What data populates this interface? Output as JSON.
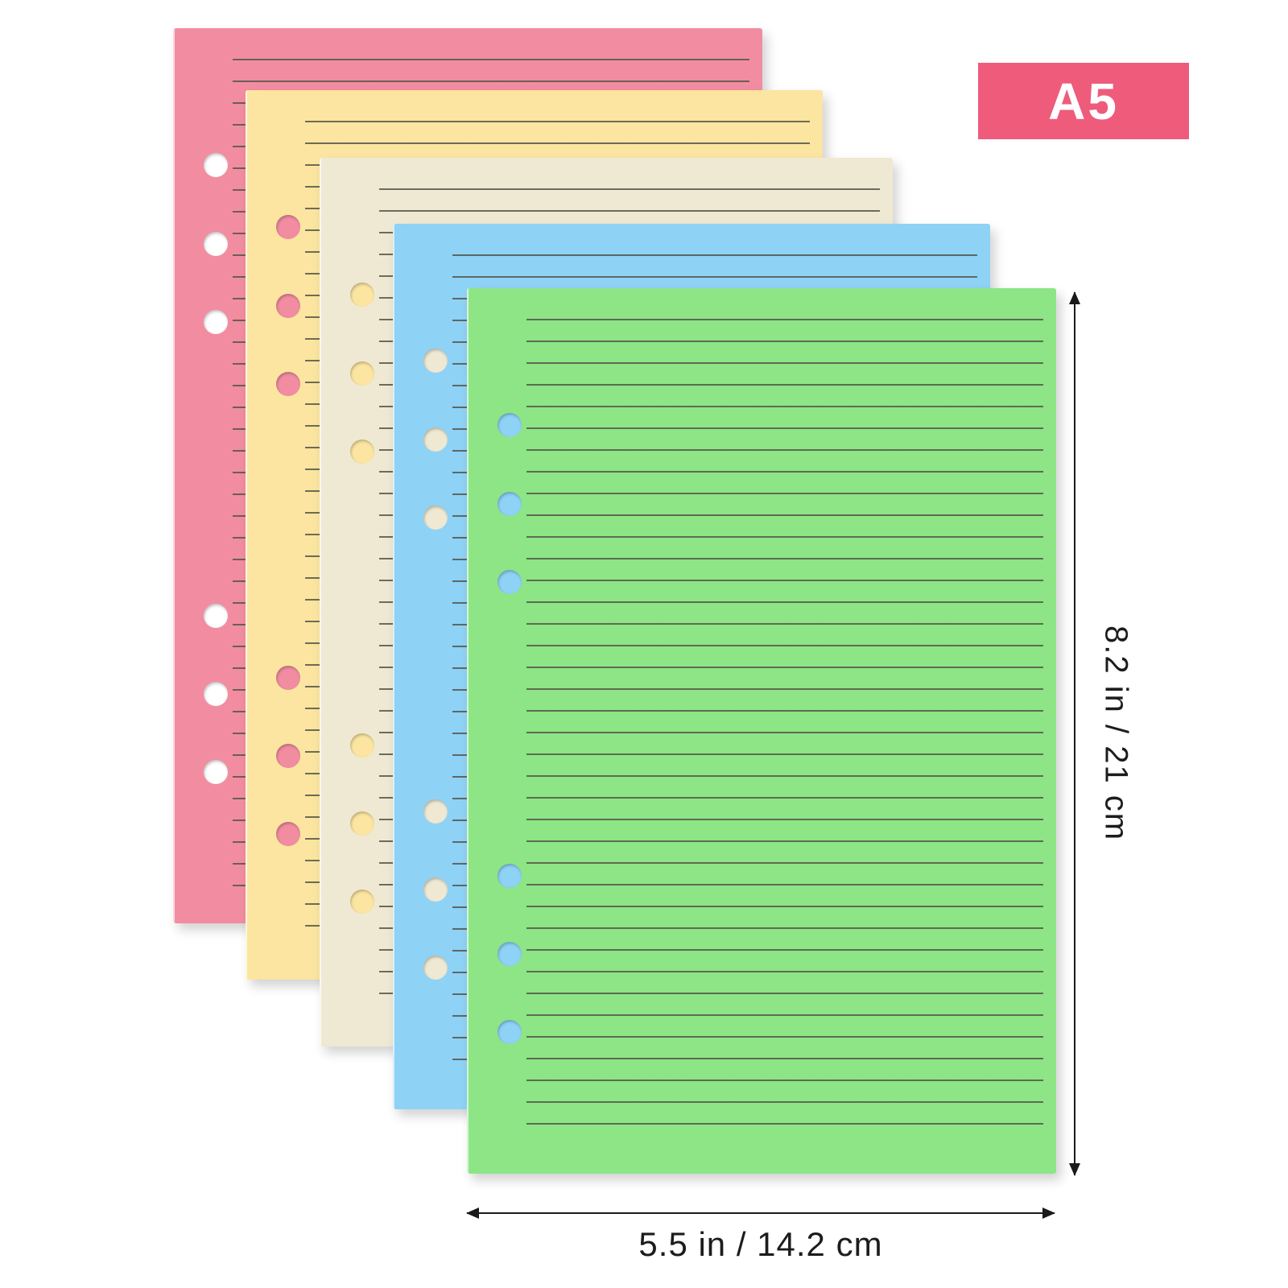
{
  "product_image": {
    "badge": {
      "label": "A5",
      "bg_color": "#ef5b7b",
      "text_color": "#ffffff"
    },
    "dimensions": {
      "height_label": "8.2 in / 21 cm",
      "width_label": "5.5 in / 14.2 cm",
      "arrow_color": "#1a1a1a",
      "label_color": "#1c1c1c"
    },
    "sheets": [
      {
        "name": "pink",
        "color": "#f28da1",
        "hole_color": "#ffffff"
      },
      {
        "name": "yellow",
        "color": "#fbe5a0",
        "hole_color": "#f28da1"
      },
      {
        "name": "cream",
        "color": "#efe9d3",
        "hole_color": "#fbe5a0"
      },
      {
        "name": "blue",
        "color": "#8ed2f6",
        "hole_color": "#efe9d3"
      },
      {
        "name": "green",
        "color": "#8de586",
        "hole_color": "#8ed2f6"
      }
    ],
    "ruled_line_color": "#56554a",
    "background_color": "#ffffff"
  }
}
